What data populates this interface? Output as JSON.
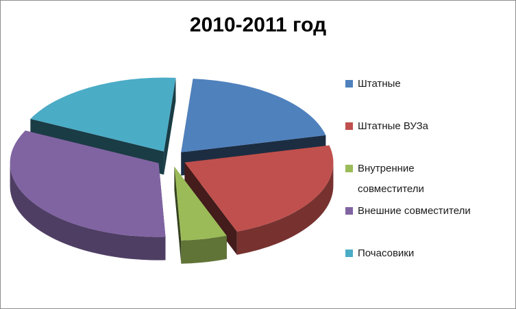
{
  "chart_data": {
    "type": "pie",
    "title": "2010-2011 год",
    "legend_position": "right",
    "series": [
      {
        "name": "Штатные",
        "value": 20,
        "color": "#4F81BD"
      },
      {
        "name": "Штатные ВУЗа",
        "value": 23,
        "color": "#C0504D"
      },
      {
        "name": "Внутренние совместители",
        "value": 5,
        "color": "#9BBB59"
      },
      {
        "name": "Внешние совместители",
        "value": 33,
        "color": "#8064A2"
      },
      {
        "name": "Почасовики",
        "value": 19,
        "color": "#4BACC6"
      }
    ]
  }
}
